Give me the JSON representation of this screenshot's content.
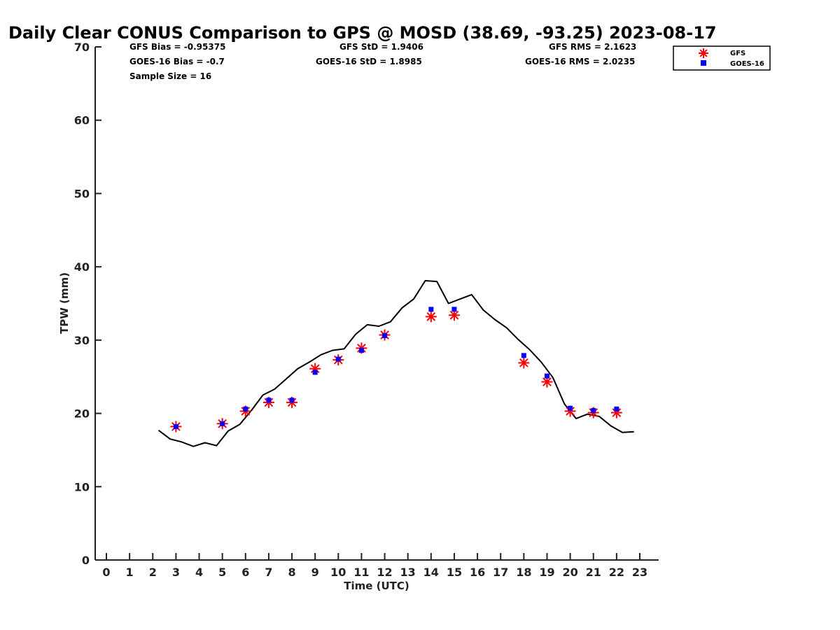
{
  "colors": {
    "gfs": "#ff0000",
    "goes": "#0000ff",
    "gps": "#000000",
    "axis": "#222222"
  },
  "chart_data": {
    "type": "scatter",
    "title": "Daily Clear CONUS Comparison to GPS @ MOSD (38.69, -93.25) 2023-08-17",
    "xlabel": "Time (UTC)",
    "ylabel": "TPW (mm)",
    "xlim": [
      -0.5,
      23.7
    ],
    "ylim": [
      0,
      70
    ],
    "xticks": [
      0,
      1,
      2,
      3,
      4,
      5,
      6,
      7,
      8,
      9,
      10,
      11,
      12,
      13,
      14,
      15,
      16,
      17,
      18,
      19,
      20,
      21,
      22,
      23
    ],
    "yticks": [
      0,
      10,
      20,
      30,
      40,
      50,
      60,
      70
    ],
    "stats": {
      "gfs_bias": "GFS Bias = -0.95375",
      "goes_bias": "GOES-16 Bias = -0.7",
      "sample_size": "Sample Size = 16",
      "gfs_std": "GFS StD = 1.9406",
      "goes_std": "GOES-16 StD = 1.8985",
      "gfs_rms": "GFS RMS = 2.1623",
      "goes_rms": "GOES-16 RMS = 2.0235"
    },
    "legend": {
      "position": "top-right",
      "entries": [
        "GFS",
        "GOES-16"
      ]
    },
    "series": [
      {
        "name": "GFS",
        "marker": "asterisk",
        "x": [
          3,
          5,
          6,
          7,
          8,
          9,
          10,
          11,
          12,
          14,
          15,
          18,
          19,
          20,
          21,
          22
        ],
        "y": [
          18.2,
          18.6,
          20.3,
          21.5,
          21.5,
          26.1,
          27.3,
          28.9,
          30.7,
          33.2,
          33.4,
          26.9,
          24.3,
          20.3,
          20.1,
          20.1
        ]
      },
      {
        "name": "GOES-16",
        "marker": "square",
        "x": [
          3,
          5,
          6,
          7,
          8,
          9,
          10,
          11,
          12,
          14,
          15,
          18,
          19,
          20,
          21,
          22
        ],
        "y": [
          18.2,
          18.6,
          20.6,
          21.8,
          21.8,
          25.6,
          27.4,
          28.6,
          30.6,
          34.2,
          34.2,
          27.9,
          25.1,
          20.7,
          20.4,
          20.6
        ]
      },
      {
        "name": "GPS",
        "marker": "line",
        "x": [
          2.25,
          2.75,
          3.25,
          3.75,
          4.25,
          4.75,
          5.25,
          5.75,
          6.25,
          6.75,
          7.25,
          7.75,
          8.25,
          8.75,
          9.25,
          9.75,
          10.25,
          10.75,
          11.25,
          11.75,
          12.25,
          12.75,
          13.25,
          13.75,
          14.25,
          14.75,
          15.25,
          15.75,
          16.25,
          16.75,
          17.25,
          17.75,
          18.25,
          18.75,
          19.25,
          19.75,
          20.25,
          20.75,
          21.25,
          21.75,
          22.25,
          22.75
        ],
        "y": [
          17.7,
          16.5,
          16.1,
          15.5,
          16.0,
          15.6,
          17.6,
          18.5,
          20.4,
          22.5,
          23.3,
          24.7,
          26.1,
          27.0,
          28.0,
          28.6,
          28.8,
          30.8,
          32.1,
          31.9,
          32.5,
          34.4,
          35.6,
          38.1,
          38.0,
          35.0,
          35.6,
          36.2,
          34.1,
          32.8,
          31.7,
          30.1,
          28.7,
          27.0,
          24.9,
          21.3,
          19.3,
          19.9,
          19.6,
          18.3,
          17.4,
          17.5
        ]
      }
    ]
  }
}
